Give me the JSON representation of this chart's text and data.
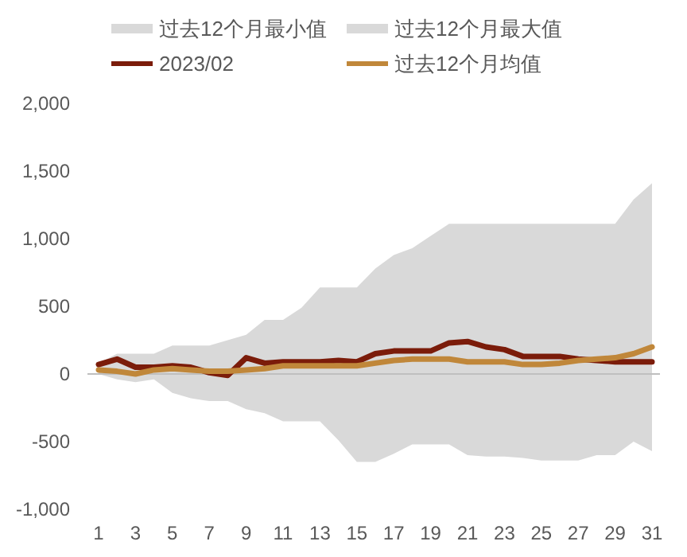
{
  "chart_data": {
    "type": "line",
    "x": [
      1,
      2,
      3,
      4,
      5,
      6,
      7,
      8,
      9,
      10,
      11,
      12,
      13,
      14,
      15,
      16,
      17,
      18,
      19,
      20,
      21,
      22,
      23,
      24,
      25,
      26,
      27,
      28,
      29,
      30,
      31
    ],
    "xlim": [
      1,
      31
    ],
    "xticks": [
      1,
      3,
      5,
      7,
      9,
      11,
      13,
      15,
      17,
      19,
      21,
      23,
      25,
      27,
      29,
      31
    ],
    "series": [
      {
        "name": "过去12个月最小值",
        "type": "area",
        "color": "#d9d9d9",
        "values": [
          0,
          -40,
          -60,
          -40,
          -140,
          -180,
          -200,
          -200,
          -260,
          -290,
          -350,
          -350,
          -350,
          -490,
          -650,
          -650,
          -590,
          -520,
          -520,
          -520,
          -600,
          -610,
          -610,
          -620,
          -640,
          -640,
          -640,
          -600,
          -600,
          -500,
          -570
        ]
      },
      {
        "name": "过去12个月最大值",
        "type": "area",
        "color": "#d9d9d9",
        "values": [
          80,
          150,
          150,
          150,
          210,
          210,
          210,
          250,
          290,
          400,
          400,
          490,
          640,
          640,
          640,
          780,
          880,
          930,
          1020,
          1110,
          1110,
          1110,
          1110,
          1110,
          1110,
          1110,
          1110,
          1110,
          1110,
          1290,
          1410
        ]
      },
      {
        "name": "2023/02",
        "color": "#7b1c0a",
        "values": [
          70,
          110,
          50,
          50,
          60,
          50,
          10,
          -10,
          120,
          80,
          90,
          90,
          90,
          100,
          90,
          150,
          170,
          170,
          170,
          230,
          240,
          200,
          180,
          130,
          130,
          130,
          110,
          100,
          90,
          90,
          90
        ]
      },
      {
        "name": "过去12个月均值",
        "color": "#c0873a",
        "values": [
          30,
          20,
          0,
          30,
          40,
          30,
          20,
          20,
          30,
          40,
          60,
          60,
          60,
          60,
          60,
          80,
          100,
          110,
          110,
          110,
          90,
          90,
          90,
          70,
          70,
          80,
          100,
          110,
          120,
          150,
          200
        ]
      }
    ],
    "ylim": [
      -1000,
      2000
    ],
    "yticks": [
      {
        "value": -1000,
        "label": "-1,000"
      },
      -500,
      0,
      500,
      {
        "value": 1000,
        "label": "1,000"
      },
      {
        "value": 1500,
        "label": "1,500"
      },
      {
        "value": 2000,
        "label": "2,000"
      }
    ],
    "ref_lines": [
      {
        "axis": "y",
        "value": 0,
        "color": "#bfbfbf"
      }
    ],
    "legend": "top"
  }
}
